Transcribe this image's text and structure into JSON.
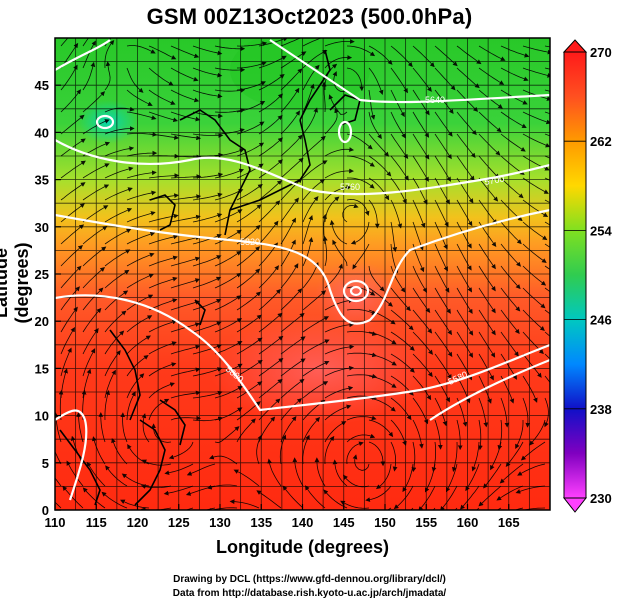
{
  "title": "GSM 00Z13Oct2023 (500.0hPa)",
  "axes": {
    "xlabel": "Longitude (degrees)",
    "ylabel": "Latitude  (degrees)",
    "x_ticks": [
      "110",
      "115",
      "120",
      "125",
      "130",
      "135",
      "140",
      "145",
      "150",
      "155",
      "160",
      "165"
    ],
    "y_ticks": [
      "0",
      "5",
      "10",
      "15",
      "20",
      "25",
      "30",
      "35",
      "40",
      "45"
    ],
    "xlim": [
      110,
      170
    ],
    "ylim": [
      0,
      50
    ]
  },
  "colorbar": {
    "labels": [
      "270",
      "262",
      "254",
      "246",
      "238",
      "230"
    ],
    "range": [
      230,
      270
    ],
    "colors": [
      "#ff1a1a",
      "#ff8c00",
      "#ffe000",
      "#40d040",
      "#00c0c0",
      "#1e90ff",
      "#1010c0",
      "#ff40ff"
    ]
  },
  "contour_labels": [
    "5880",
    "5820",
    "5760",
    "5700",
    "5640",
    "5580"
  ],
  "footer": {
    "line1": "Drawing by DCL (https://www.gfd-dennou.org/library/dcl/)",
    "line2": "Data from http://database.rish.kyoto-u.ac.jp/arch/jmadata/"
  },
  "chart_data": {
    "type": "heatmap",
    "title": "GSM 00Z13Oct2023 (500.0hPa)",
    "xlabel": "Longitude (degrees)",
    "ylabel": "Latitude  (degrees)",
    "xlim": [
      110,
      170
    ],
    "ylim": [
      0,
      50
    ],
    "colorbar_range": [
      230,
      270
    ],
    "grid": true,
    "cyclone_center": {
      "lon": 146,
      "lat": 25.5
    },
    "approx_temperature_by_latitude": [
      {
        "lat": 0,
        "value": 268
      },
      {
        "lat": 10,
        "value": 268
      },
      {
        "lat": 20,
        "value": 267
      },
      {
        "lat": 25,
        "value": 266
      },
      {
        "lat": 30,
        "value": 263
      },
      {
        "lat": 35,
        "value": 259
      },
      {
        "lat": 40,
        "value": 255
      },
      {
        "lat": 45,
        "value": 252
      },
      {
        "lat": 50,
        "value": 251
      }
    ]
  }
}
